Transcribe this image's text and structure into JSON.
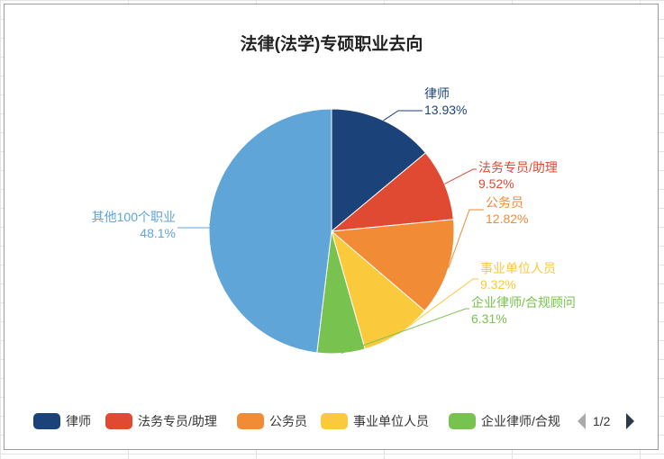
{
  "chart_data": {
    "type": "pie",
    "title": "法律(法学)专硕职业去向",
    "slices": [
      {
        "label": "律师",
        "value": 13.93,
        "display": "13.93%",
        "color": "#1b4279"
      },
      {
        "label": "法务专员/助理",
        "value": 9.52,
        "display": "9.52%",
        "color": "#e04a33"
      },
      {
        "label": "公务员",
        "value": 12.82,
        "display": "12.82%",
        "color": "#f28b36"
      },
      {
        "label": "事业单位人员",
        "value": 9.32,
        "display": "9.32%",
        "color": "#fbc93c"
      },
      {
        "label": "企业律师/合规顾问",
        "value": 6.31,
        "display": "6.31%",
        "color": "#78c24f"
      },
      {
        "label": "其他100个职业",
        "value": 48.1,
        "display": "48.1%",
        "color": "#5fa5d8"
      }
    ],
    "legend": {
      "placement": "bottom",
      "items": [
        "律师",
        "法务专员/助理",
        "公务员",
        "事业单位人员",
        "企业律师/合规"
      ],
      "page": "1/2"
    }
  }
}
